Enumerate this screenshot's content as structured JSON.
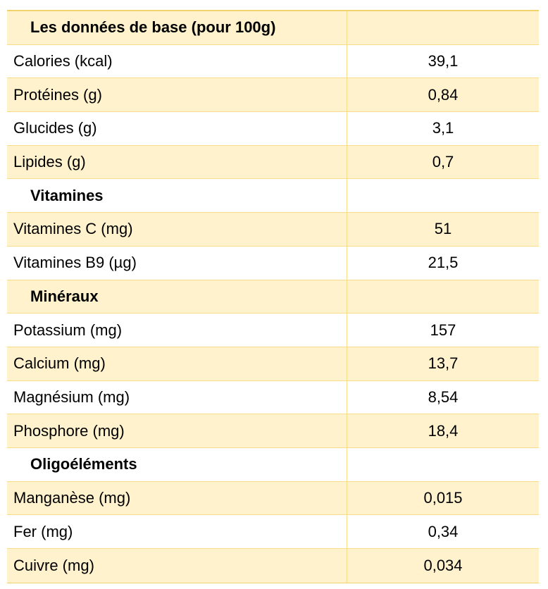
{
  "table": {
    "rows": [
      {
        "label": "Les données de base (pour 100g)",
        "value": "",
        "section": true,
        "shaded": true
      },
      {
        "label": "Calories (kcal)",
        "value": "39,1",
        "section": false,
        "shaded": false
      },
      {
        "label": "Protéines (g)",
        "value": "0,84",
        "section": false,
        "shaded": true
      },
      {
        "label": "Glucides (g)",
        "value": "3,1",
        "section": false,
        "shaded": false
      },
      {
        "label": "Lipides (g)",
        "value": "0,7",
        "section": false,
        "shaded": true
      },
      {
        "label": "Vitamines",
        "value": "",
        "section": true,
        "shaded": false
      },
      {
        "label": "Vitamines C (mg)",
        "value": "51",
        "section": false,
        "shaded": true
      },
      {
        "label": "Vitamines B9 (µg)",
        "value": "21,5",
        "section": false,
        "shaded": false
      },
      {
        "label": "Minéraux",
        "value": "",
        "section": true,
        "shaded": true
      },
      {
        "label": "Potassium (mg)",
        "value": "157",
        "section": false,
        "shaded": false
      },
      {
        "label": "Calcium (mg)",
        "value": "13,7",
        "section": false,
        "shaded": true
      },
      {
        "label": "Magnésium (mg)",
        "value": "8,54",
        "section": false,
        "shaded": false
      },
      {
        "label": "Phosphore (mg)",
        "value": "18,4",
        "section": false,
        "shaded": true
      },
      {
        "label": "Oligoéléments",
        "value": "",
        "section": true,
        "shaded": false
      },
      {
        "label": "Manganèse (mg)",
        "value": "0,015",
        "section": false,
        "shaded": true
      },
      {
        "label": "Fer (mg)",
        "value": "0,34",
        "section": false,
        "shaded": false
      },
      {
        "label": "Cuivre (mg)",
        "value": "0,034",
        "section": false,
        "shaded": true
      }
    ]
  }
}
